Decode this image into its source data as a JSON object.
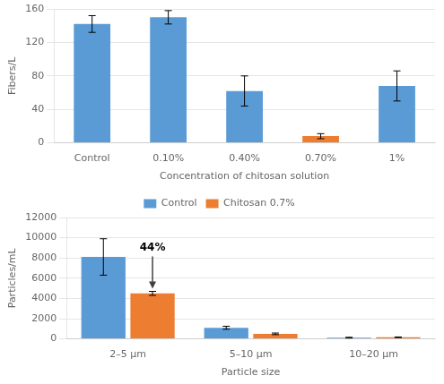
{
  "chart_data": [
    {
      "type": "bar",
      "categories": [
        "Control",
        "0.10%",
        "0.40%",
        "0.70%",
        "1%"
      ],
      "values": [
        142,
        150,
        62,
        8,
        68
      ],
      "errors": [
        10,
        8,
        18,
        3,
        18
      ],
      "colors": [
        "#5b9bd5",
        "#5b9bd5",
        "#5b9bd5",
        "#ed7d31",
        "#5b9bd5"
      ],
      "xlabel": "Concentration of chitosan solution",
      "ylabel": "Fibers/L",
      "ylim": [
        0,
        160
      ],
      "yticks": [
        0,
        40,
        80,
        120,
        160
      ],
      "grid": true
    },
    {
      "type": "bar",
      "categories": [
        "2–5 μm",
        "5–10 μm",
        "10–20 μm"
      ],
      "series": [
        {
          "name": "Control",
          "color": "#5b9bd5",
          "values": [
            8100,
            1100,
            120
          ],
          "errors": [
            1800,
            150,
            40
          ]
        },
        {
          "name": "Chitosan 0.7%",
          "color": "#ed7d31",
          "values": [
            4500,
            500,
            160
          ],
          "errors": [
            200,
            80,
            30
          ]
        }
      ],
      "xlabel": "Particle size",
      "ylabel": "Particles/mL",
      "ylim": [
        0,
        12000
      ],
      "yticks": [
        0,
        2000,
        4000,
        6000,
        8000,
        10000,
        12000
      ],
      "grid": true,
      "legend": "top",
      "annotations": [
        {
          "text": "44%",
          "category": "2–5 μm",
          "series": "Chitosan 0.7%"
        }
      ]
    }
  ]
}
